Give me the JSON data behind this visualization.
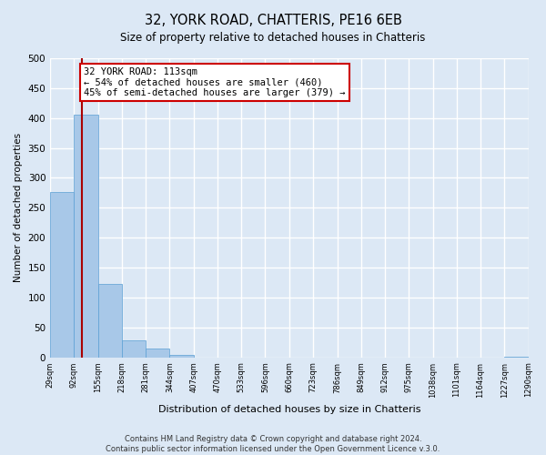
{
  "title": "32, YORK ROAD, CHATTERIS, PE16 6EB",
  "subtitle": "Size of property relative to detached houses in Chatteris",
  "xlabel": "Distribution of detached houses by size in Chatteris",
  "ylabel": "Number of detached properties",
  "bar_edges": [
    29,
    92,
    155,
    218,
    281,
    344,
    407,
    470,
    533,
    596,
    660,
    723,
    786,
    849,
    912,
    975,
    1038,
    1101,
    1164,
    1227,
    1290
  ],
  "bar_heights": [
    277,
    406,
    122,
    28,
    15,
    4,
    0,
    0,
    0,
    0,
    0,
    0,
    0,
    0,
    0,
    0,
    0,
    0,
    0,
    1
  ],
  "bar_color": "#a8c8e8",
  "bar_edge_color": "#5a9fd4",
  "property_line_x": 113,
  "property_line_color": "#aa0000",
  "annotation_title": "32 YORK ROAD: 113sqm",
  "annotation_line1": "← 54% of detached houses are smaller (460)",
  "annotation_line2": "45% of semi-detached houses are larger (379) →",
  "annotation_box_color": "#ffffff",
  "annotation_box_edge_color": "#cc0000",
  "ylim": [
    0,
    500
  ],
  "tick_labels": [
    "29sqm",
    "92sqm",
    "155sqm",
    "218sqm",
    "281sqm",
    "344sqm",
    "407sqm",
    "470sqm",
    "533sqm",
    "596sqm",
    "660sqm",
    "723sqm",
    "786sqm",
    "849sqm",
    "912sqm",
    "975sqm",
    "1038sqm",
    "1101sqm",
    "1164sqm",
    "1227sqm",
    "1290sqm"
  ],
  "footer_line1": "Contains HM Land Registry data © Crown copyright and database right 2024.",
  "footer_line2": "Contains public sector information licensed under the Open Government Licence v.3.0.",
  "background_color": "#dce8f5",
  "plot_bg_color": "#dce8f5",
  "grid_color": "#ffffff"
}
